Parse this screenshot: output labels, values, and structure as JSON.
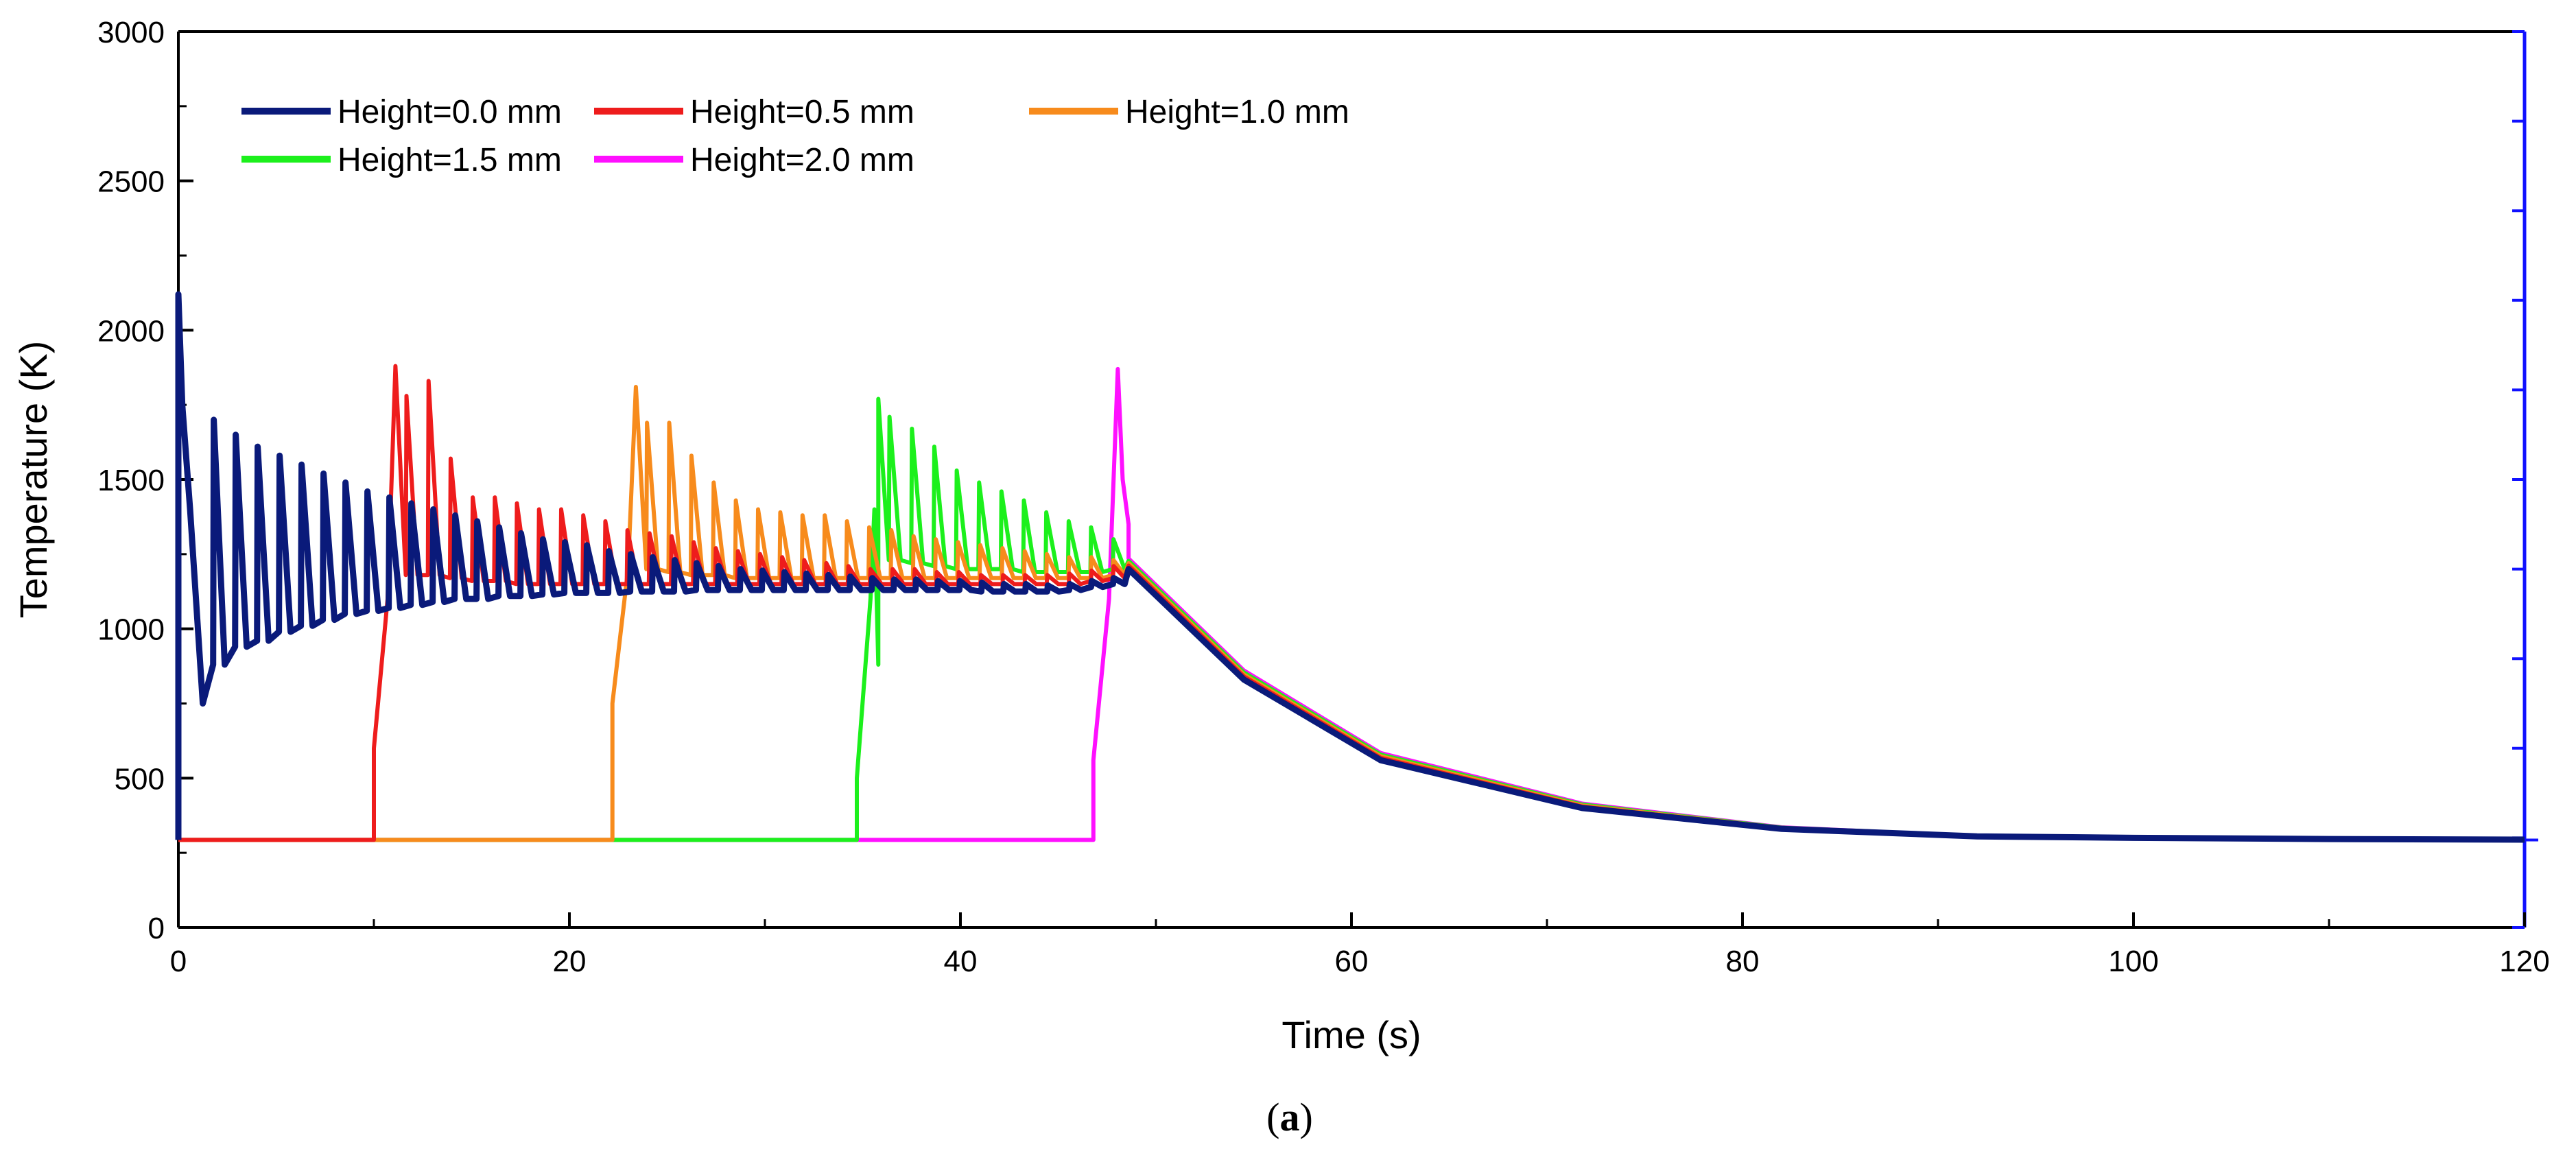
{
  "chart_data": {
    "type": "line",
    "title": "",
    "caption": {
      "open": "(",
      "label": "a",
      "close": ")"
    },
    "xlabel": "Time (s)",
    "ylabel": "Temperature (K)",
    "xlim": [
      0,
      120
    ],
    "ylim": [
      0,
      3000
    ],
    "xticks": [
      0,
      20,
      40,
      60,
      80,
      100,
      120
    ],
    "yticks": [
      0,
      500,
      1000,
      1500,
      2000,
      2500,
      3000
    ],
    "grid": false,
    "legend_position": "top-left",
    "series": [
      {
        "name": "Height=0.0 mm",
        "color": "#0a1a7a",
        "start": 0.0,
        "onset": [
          [
            0,
            2120
          ],
          [
            0.2,
            1750
          ],
          [
            0.6,
            1400
          ],
          [
            1.0,
            1000
          ],
          [
            1.25,
            750
          ]
        ],
        "peaks": [
          1700,
          1650,
          1610,
          1580,
          1550,
          1520,
          1490,
          1460,
          1440,
          1420,
          1400,
          1380,
          1360,
          1340,
          1320,
          1300,
          1290,
          1280,
          1260,
          1250,
          1240,
          1230,
          1220,
          1210,
          1200,
          1195,
          1190,
          1185,
          1180,
          1175,
          1170,
          1165,
          1165,
          1160,
          1160,
          1155,
          1150,
          1150,
          1145,
          1150,
          1160,
          1170
        ],
        "troughs": [
          880,
          940,
          960,
          990,
          1010,
          1030,
          1050,
          1060,
          1070,
          1080,
          1090,
          1100,
          1100,
          1110,
          1110,
          1115,
          1120,
          1120,
          1120,
          1125,
          1125,
          1125,
          1130,
          1130,
          1130,
          1130,
          1130,
          1130,
          1130,
          1130,
          1130,
          1130,
          1130,
          1130,
          1130,
          1125,
          1125,
          1125,
          1125,
          1130,
          1140,
          1150
        ]
      },
      {
        "name": "Height=0.5 mm",
        "color": "#ee1c1c",
        "start": 10.0,
        "onset": [
          [
            10.0,
            600
          ],
          [
            10.7,
            1100
          ],
          [
            11.1,
            1880
          ]
        ],
        "peaks": [
          1780,
          1830,
          1570,
          1440,
          1440,
          1420,
          1400,
          1400,
          1380,
          1360,
          1330,
          1320,
          1310,
          1290,
          1270,
          1260,
          1250,
          1240,
          1230,
          1220,
          1210,
          1200,
          1200,
          1200,
          1190,
          1190,
          1180,
          1180,
          1180,
          1180,
          1185,
          1195,
          1210
        ],
        "troughs": [
          1180,
          1180,
          1170,
          1160,
          1160,
          1150,
          1150,
          1150,
          1150,
          1150,
          1150,
          1150,
          1150,
          1150,
          1150,
          1150,
          1150,
          1150,
          1150,
          1150,
          1150,
          1150,
          1150,
          1150,
          1150,
          1150,
          1150,
          1150,
          1150,
          1150,
          1150,
          1160,
          1170
        ]
      },
      {
        "name": "Height=1.0 mm",
        "color": "#f78b1c",
        "start": 22.2,
        "onset": [
          [
            22.2,
            750
          ],
          [
            23.0,
            1200
          ],
          [
            23.4,
            1810
          ]
        ],
        "peaks": [
          1690,
          1690,
          1580,
          1490,
          1430,
          1400,
          1390,
          1380,
          1380,
          1360,
          1340,
          1330,
          1310,
          1300,
          1290,
          1280,
          1270,
          1260,
          1250,
          1240,
          1240,
          1230
        ],
        "troughs": [
          1200,
          1190,
          1180,
          1180,
          1170,
          1170,
          1170,
          1170,
          1170,
          1170,
          1170,
          1170,
          1170,
          1170,
          1170,
          1170,
          1170,
          1170,
          1170,
          1170,
          1170,
          1180
        ]
      },
      {
        "name": "Height=1.5 mm",
        "color": "#1cf01c",
        "start": 34.7,
        "onset": [
          [
            34.7,
            500
          ],
          [
            35.4,
            1100
          ],
          [
            35.6,
            1400
          ],
          [
            35.8,
            880
          ],
          [
            35.8,
            1770
          ]
        ],
        "peaks": [
          1710,
          1670,
          1610,
          1530,
          1490,
          1460,
          1430,
          1390,
          1360,
          1340,
          1300
        ],
        "troughs": [
          1230,
          1220,
          1210,
          1200,
          1200,
          1200,
          1190,
          1190,
          1190,
          1190,
          1200
        ]
      },
      {
        "name": "Height=2.0 mm",
        "color": "#ff10ff",
        "start": 46.8,
        "onset": [
          [
            46.8,
            560
          ],
          [
            47.6,
            1100
          ],
          [
            48.05,
            1870
          ],
          [
            48.3,
            1500
          ],
          [
            48.6,
            1350
          ]
        ],
        "peaks": [],
        "troughs": []
      }
    ],
    "cooling": [
      [
        48.6,
        1200
      ],
      [
        54.5,
        830
      ],
      [
        61.5,
        560
      ],
      [
        71.8,
        400
      ],
      [
        82.0,
        330
      ],
      [
        92.0,
        305
      ],
      [
        100.0,
        300
      ],
      [
        110.0,
        296
      ],
      [
        120.0,
        294
      ]
    ],
    "ambient": 293
  }
}
